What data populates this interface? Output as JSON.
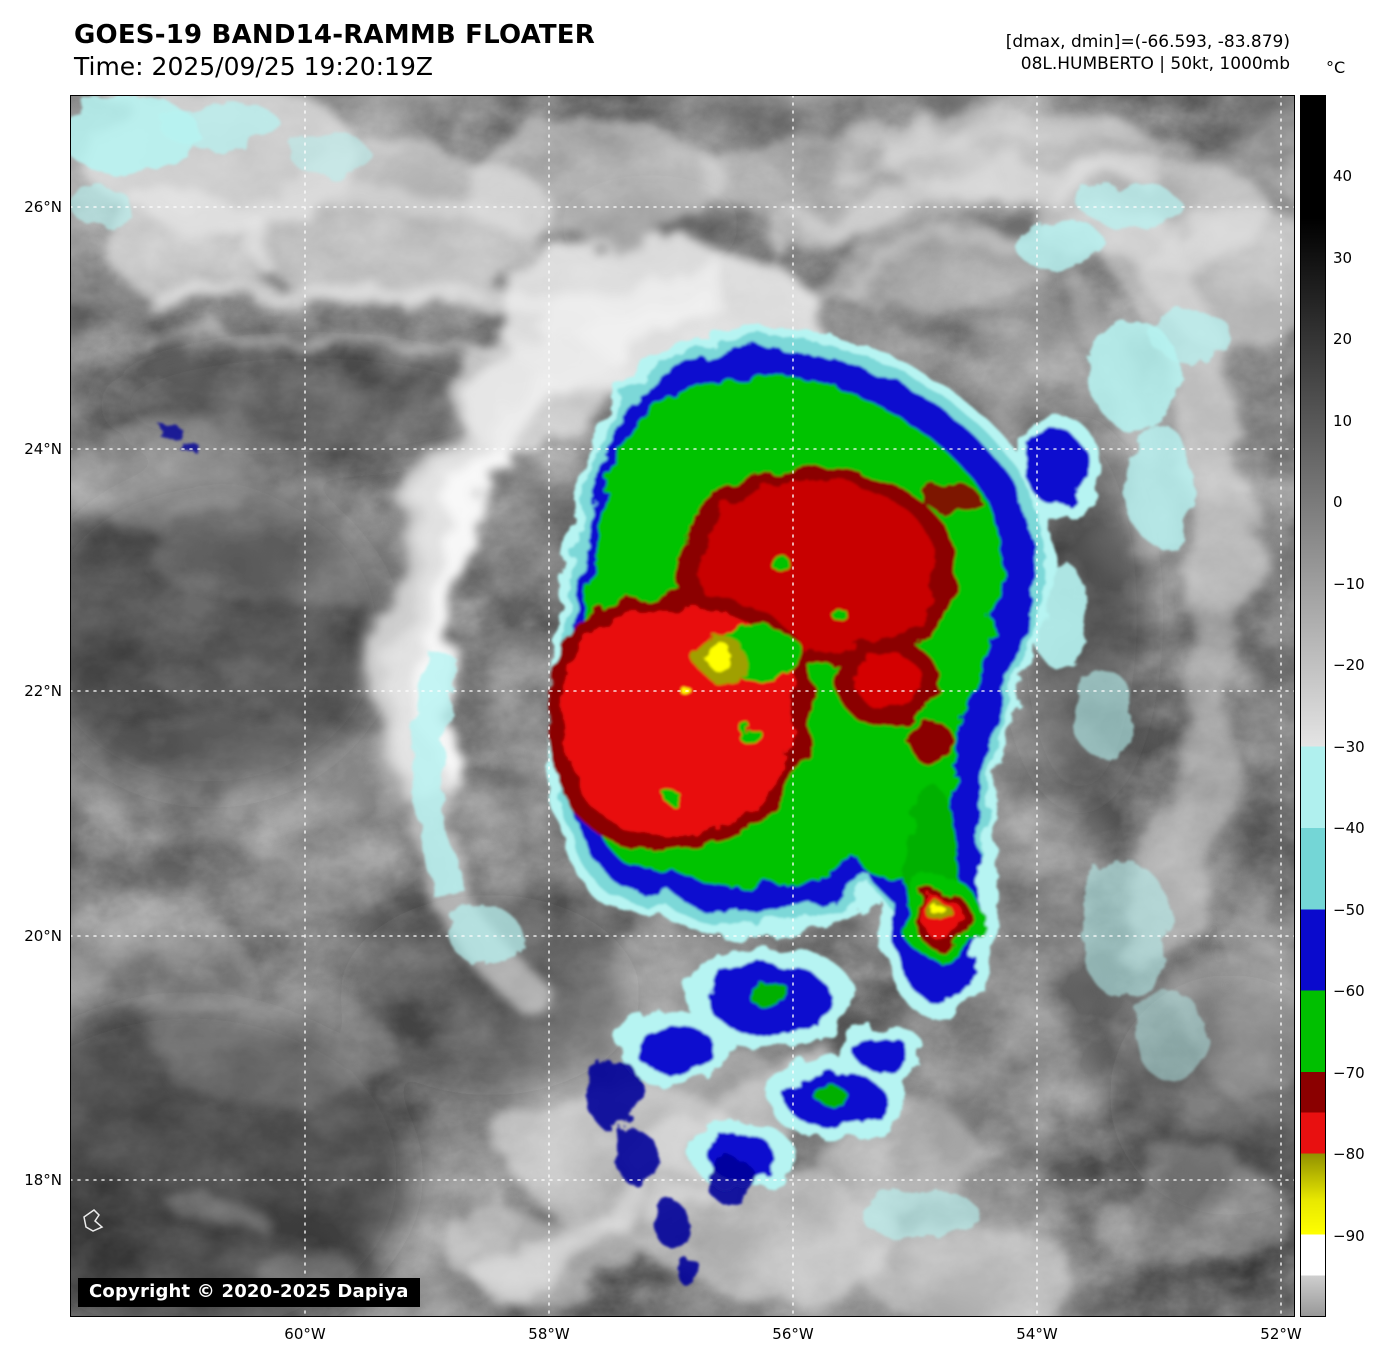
{
  "header": {
    "title": "GOES-19 BAND14-RAMMB FLOATER",
    "time": "Time: 2025/09/25 19:20:19Z",
    "range_readout": "[dmax, dmin]=(-66.593, -83.879)",
    "storm_readout": "08L.HUMBERTO | 50kt, 1000mb"
  },
  "colorbar": {
    "unit": "°C",
    "ticks": [
      {
        "label": "40",
        "value": 40
      },
      {
        "label": "30",
        "value": 30
      },
      {
        "label": "20",
        "value": 20
      },
      {
        "label": "10",
        "value": 10
      },
      {
        "label": "0",
        "value": 0
      },
      {
        "label": "−10",
        "value": -10
      },
      {
        "label": "−20",
        "value": -20
      },
      {
        "label": "−30",
        "value": -30
      },
      {
        "label": "−40",
        "value": -40
      },
      {
        "label": "−50",
        "value": -50
      },
      {
        "label": "−60",
        "value": -60
      },
      {
        "label": "−70",
        "value": -70
      },
      {
        "label": "−80",
        "value": -80
      },
      {
        "label": "−90",
        "value": -90
      }
    ]
  },
  "axes": {
    "lat": [
      "26°N",
      "24°N",
      "22°N",
      "20°N",
      "18°N"
    ],
    "lon": [
      "60°W",
      "58°W",
      "56°W",
      "54°W",
      "52°W"
    ]
  },
  "map": {
    "copyright": "Copyright © 2020-2025 Dapiya"
  },
  "colors": {
    "cyan_light": "#b6f4f2",
    "cyan_mid": "#7cd8d8",
    "blue": "#0808cf",
    "blue_dark": "#000099",
    "green": "#00c300",
    "red_dark": "#8b0000",
    "red": "#e81010",
    "yellow_dark": "#a0a000",
    "yellow": "#ffff00"
  }
}
